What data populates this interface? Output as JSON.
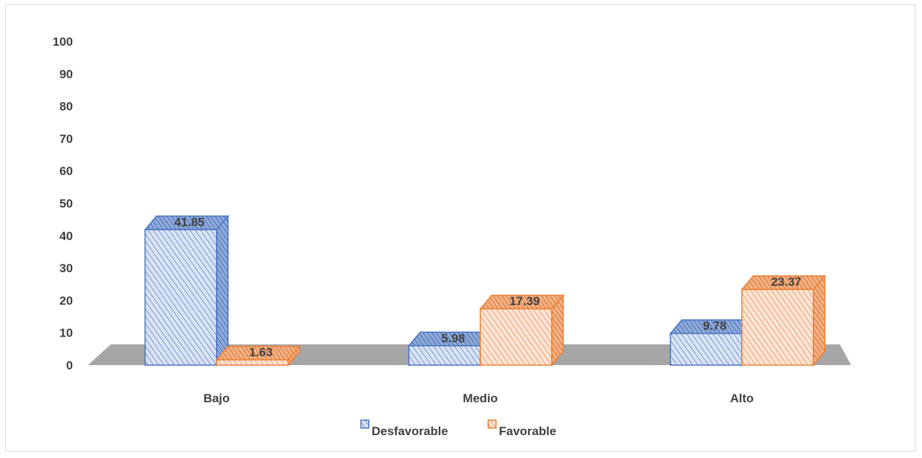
{
  "chart_data": {
    "type": "bar",
    "categories": [
      "Bajo",
      "Medio",
      "Alto"
    ],
    "series": [
      {
        "name": "Desfavorable",
        "values": [
          41.85,
          5.98,
          9.78
        ],
        "color": "#4472c4",
        "fill": "#dae3f3"
      },
      {
        "name": "Favorable",
        "values": [
          1.63,
          17.39,
          23.37
        ],
        "color": "#ed7d31",
        "fill": "#fbe5d6"
      }
    ],
    "ylim": [
      0,
      100
    ],
    "yticks": [
      "0",
      "10",
      "20",
      "30",
      "40",
      "50",
      "60",
      "70",
      "80",
      "90",
      "100"
    ],
    "data_labels": [
      "41.85",
      "5.98",
      "9.78",
      "1.63",
      "17.39",
      "23.37"
    ],
    "legend": {
      "position": "bottom",
      "items": [
        "Desfavorable",
        "Favorable"
      ]
    },
    "grid": false,
    "style": "3d-clustered-column",
    "floor_color": "#a6a6a6"
  }
}
